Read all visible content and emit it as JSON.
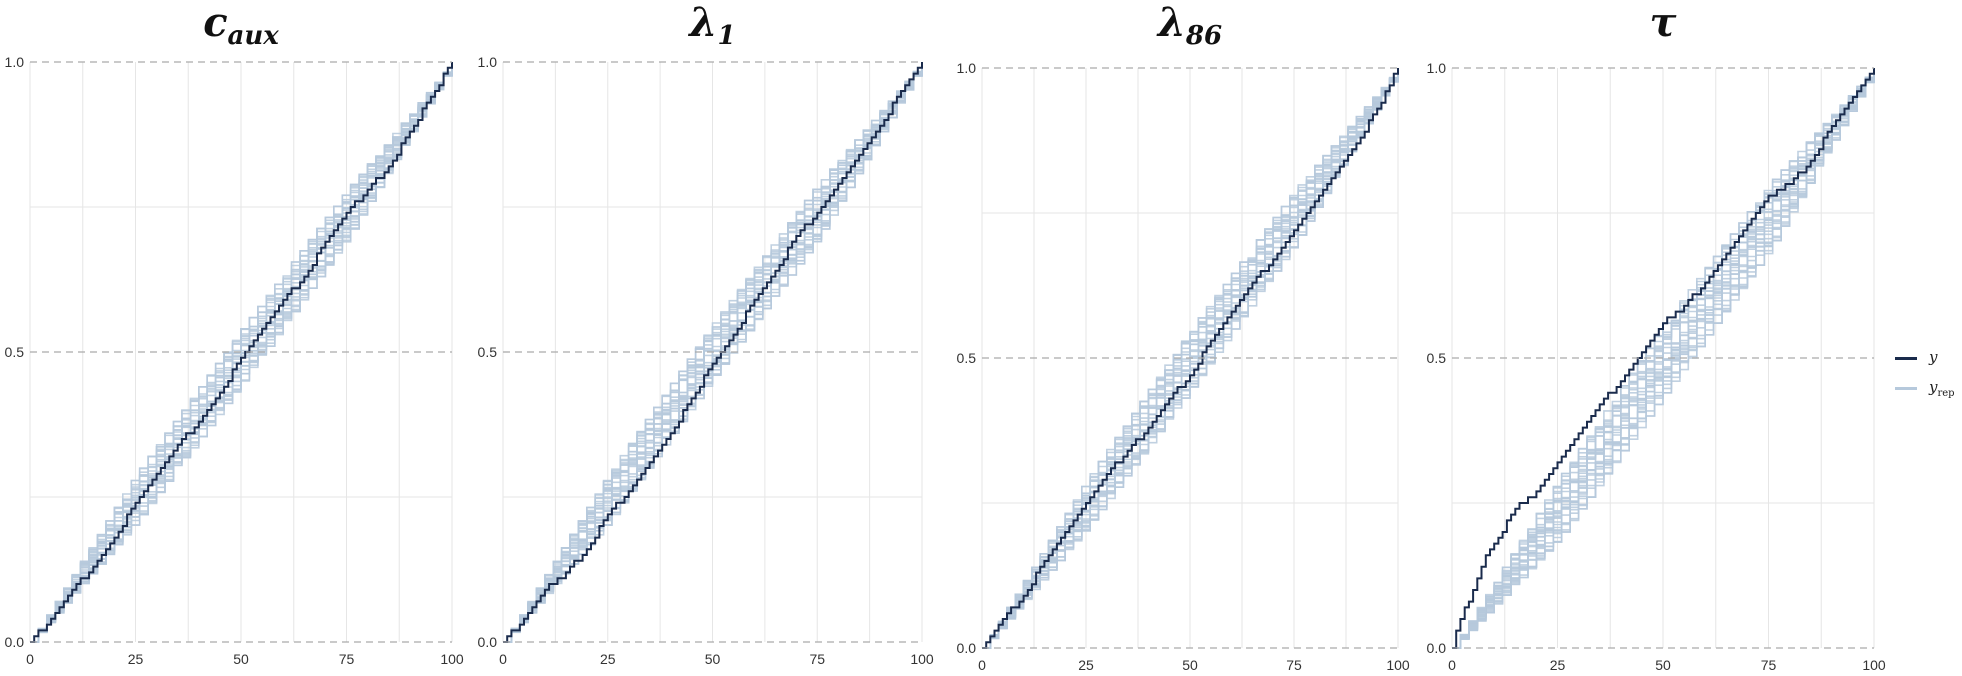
{
  "chart_data": [
    {
      "type": "line",
      "title": "c",
      "title_subscript": "aux",
      "xlim": [
        0,
        100
      ],
      "ylim": [
        0,
        1
      ],
      "x_ticks": [
        0,
        25,
        50,
        75,
        100
      ],
      "y_ticks": [
        0.0,
        0.5,
        1.0
      ],
      "x_tick_labels": [
        "0",
        "25",
        "50",
        "75",
        "100"
      ],
      "y_tick_labels": [
        "0.0",
        "0.5",
        "1.0"
      ],
      "grid": true,
      "series": [
        {
          "name": "y",
          "role": "observed",
          "x": [
            0,
            5,
            10,
            15,
            20,
            25,
            30,
            35,
            40,
            45,
            50,
            55,
            60,
            65,
            70,
            75,
            80,
            85,
            90,
            95,
            100
          ],
          "values": [
            0.0,
            0.04,
            0.09,
            0.13,
            0.18,
            0.24,
            0.29,
            0.34,
            0.38,
            0.43,
            0.49,
            0.54,
            0.59,
            0.63,
            0.69,
            0.74,
            0.78,
            0.82,
            0.88,
            0.94,
            1.0
          ]
        },
        {
          "name": "y_rep",
          "role": "replicated-band",
          "x": [
            0,
            25,
            50,
            75,
            100
          ],
          "lower": [
            0.0,
            0.21,
            0.45,
            0.7,
            1.0
          ],
          "upper": [
            0.0,
            0.29,
            0.54,
            0.78,
            1.0
          ]
        }
      ]
    },
    {
      "type": "line",
      "title": "λ",
      "title_subscript": "1",
      "xlim": [
        0,
        100
      ],
      "ylim": [
        0,
        1
      ],
      "x_ticks": [
        0,
        25,
        50,
        75,
        100
      ],
      "y_ticks": [
        0.0,
        0.5,
        1.0
      ],
      "x_tick_labels": [
        "0",
        "25",
        "50",
        "75",
        "100"
      ],
      "y_tick_labels": [
        "0.0",
        "0.5",
        "1.0"
      ],
      "grid": true,
      "series": [
        {
          "name": "y",
          "role": "observed",
          "x": [
            0,
            5,
            10,
            15,
            20,
            25,
            30,
            35,
            40,
            45,
            50,
            55,
            60,
            65,
            70,
            75,
            80,
            85,
            90,
            95,
            100
          ],
          "values": [
            0.0,
            0.04,
            0.09,
            0.12,
            0.16,
            0.22,
            0.26,
            0.31,
            0.36,
            0.42,
            0.48,
            0.53,
            0.59,
            0.64,
            0.7,
            0.74,
            0.79,
            0.84,
            0.89,
            0.95,
            1.0
          ]
        },
        {
          "name": "y_rep",
          "role": "replicated-band",
          "x": [
            0,
            25,
            50,
            75,
            100
          ],
          "lower": [
            0.0,
            0.21,
            0.46,
            0.7,
            1.0
          ],
          "upper": [
            0.0,
            0.29,
            0.55,
            0.79,
            1.0
          ]
        }
      ]
    },
    {
      "type": "line",
      "title": "λ",
      "title_subscript": "86",
      "xlim": [
        0,
        100
      ],
      "ylim": [
        0,
        1
      ],
      "x_ticks": [
        0,
        25,
        50,
        75,
        100
      ],
      "y_ticks": [
        0.0,
        0.5,
        1.0
      ],
      "x_tick_labels": [
        "0",
        "25",
        "50",
        "75",
        "100"
      ],
      "y_tick_labels": [
        "0.0",
        "0.5",
        "1.0"
      ],
      "grid": true,
      "series": [
        {
          "name": "y",
          "role": "observed",
          "x": [
            0,
            5,
            10,
            15,
            20,
            25,
            30,
            35,
            40,
            45,
            50,
            55,
            60,
            65,
            70,
            75,
            80,
            85,
            90,
            95,
            100
          ],
          "values": [
            0.0,
            0.05,
            0.09,
            0.15,
            0.2,
            0.25,
            0.3,
            0.34,
            0.38,
            0.43,
            0.47,
            0.53,
            0.58,
            0.63,
            0.67,
            0.72,
            0.77,
            0.82,
            0.87,
            0.93,
            1.0
          ]
        },
        {
          "name": "y_rep",
          "role": "replicated-band",
          "x": [
            0,
            25,
            50,
            75,
            100
          ],
          "lower": [
            0.0,
            0.21,
            0.45,
            0.7,
            1.0
          ],
          "upper": [
            0.0,
            0.29,
            0.55,
            0.79,
            1.0
          ]
        }
      ]
    },
    {
      "type": "line",
      "title": "τ",
      "title_subscript": "",
      "xlim": [
        0,
        100
      ],
      "ylim": [
        0,
        1
      ],
      "x_ticks": [
        0,
        25,
        50,
        75,
        100
      ],
      "y_ticks": [
        0.0,
        0.5,
        1.0
      ],
      "x_tick_labels": [
        "0",
        "25",
        "50",
        "75",
        "100"
      ],
      "y_tick_labels": [
        "0.0",
        "0.5",
        "1.0"
      ],
      "grid": true,
      "series": [
        {
          "name": "y",
          "role": "observed",
          "x": [
            0,
            2,
            5,
            8,
            10,
            15,
            20,
            25,
            30,
            35,
            40,
            45,
            50,
            55,
            60,
            65,
            70,
            75,
            80,
            85,
            90,
            95,
            100
          ],
          "values": [
            0.0,
            0.05,
            0.1,
            0.16,
            0.18,
            0.24,
            0.27,
            0.32,
            0.37,
            0.42,
            0.46,
            0.51,
            0.56,
            0.59,
            0.63,
            0.68,
            0.73,
            0.78,
            0.8,
            0.84,
            0.9,
            0.95,
            1.0
          ]
        },
        {
          "name": "y_rep",
          "role": "replicated-band",
          "x": [
            0,
            25,
            50,
            75,
            100
          ],
          "lower": [
            0.0,
            0.19,
            0.44,
            0.69,
            1.0
          ],
          "upper": [
            0.0,
            0.29,
            0.56,
            0.8,
            1.0
          ]
        }
      ]
    }
  ],
  "legend": {
    "placement": "right",
    "items": [
      {
        "label": "y",
        "subscript": "",
        "color": "#1a2b4c"
      },
      {
        "label": "y",
        "subscript": "rep",
        "color": "#b6c9dc"
      }
    ]
  },
  "colors": {
    "observed": "#1a2b4c",
    "replicated": "#b6c9dc",
    "grid": "#e6e6e6",
    "ref_line": "#aaaaaa"
  }
}
